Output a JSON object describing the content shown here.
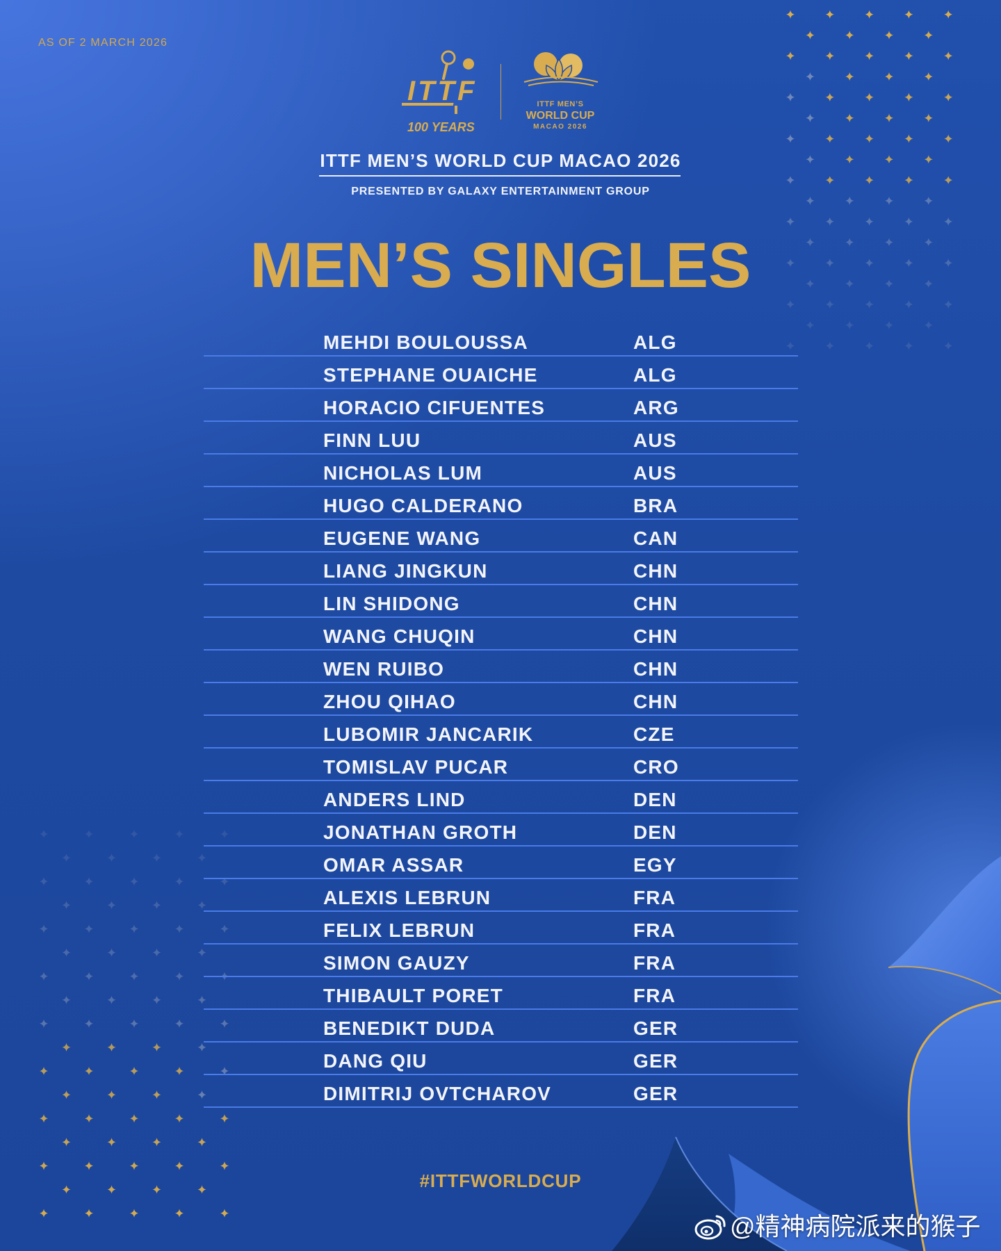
{
  "as_of": "AS OF 2 MARCH 2026",
  "logos": {
    "ittf": {
      "wordmark": "ITTF",
      "centenary": "100 YEARS"
    },
    "world_cup": {
      "line1": "ITTF MEN’S",
      "line2": "WORLD CUP",
      "line3": "MACAO 2026"
    }
  },
  "event": {
    "title": "ITTF MEN’S WORLD CUP MACAO 2026",
    "presented_by": "PRESENTED BY GALAXY ENTERTAINMENT GROUP"
  },
  "heading": "MEN’S SINGLES",
  "players": [
    {
      "name": "MEHDI BOULOUSSA",
      "country": "ALG"
    },
    {
      "name": "STEPHANE OUAICHE",
      "country": "ALG"
    },
    {
      "name": "HORACIO CIFUENTES",
      "country": "ARG"
    },
    {
      "name": "FINN LUU",
      "country": "AUS"
    },
    {
      "name": "NICHOLAS LUM",
      "country": "AUS"
    },
    {
      "name": "HUGO CALDERANO",
      "country": "BRA"
    },
    {
      "name": "EUGENE WANG",
      "country": "CAN"
    },
    {
      "name": "LIANG JINGKUN",
      "country": "CHN"
    },
    {
      "name": "LIN SHIDONG",
      "country": "CHN"
    },
    {
      "name": "WANG CHUQIN",
      "country": "CHN"
    },
    {
      "name": "WEN RUIBO",
      "country": "CHN"
    },
    {
      "name": "ZHOU QIHAO",
      "country": "CHN"
    },
    {
      "name": "LUBOMIR JANCARIK",
      "country": "CZE"
    },
    {
      "name": "TOMISLAV PUCAR",
      "country": "CRO"
    },
    {
      "name": "ANDERS LIND",
      "country": "DEN"
    },
    {
      "name": "JONATHAN GROTH",
      "country": "DEN"
    },
    {
      "name": "OMAR ASSAR",
      "country": "EGY"
    },
    {
      "name": "ALEXIS LEBRUN",
      "country": "FRA"
    },
    {
      "name": "FELIX LEBRUN",
      "country": "FRA"
    },
    {
      "name": "SIMON GAUZY",
      "country": "FRA"
    },
    {
      "name": "THIBAULT PORET",
      "country": "FRA"
    },
    {
      "name": "BENEDIKT DUDA",
      "country": "GER"
    },
    {
      "name": "DANG QIU",
      "country": "GER"
    },
    {
      "name": "DIMITRIJ OVTCHAROV",
      "country": "GER"
    }
  ],
  "hashtag": "#ITTFWORLDCUP",
  "watermark": {
    "icon": "weibo-icon",
    "handle": "@精神病院派来的猴子"
  },
  "colors": {
    "gold": "#d9ad4f",
    "text": "#f3f5fb",
    "background": "#1e4aa2",
    "divider": "#4a7be8",
    "star_fade": "#8e9cbc"
  }
}
